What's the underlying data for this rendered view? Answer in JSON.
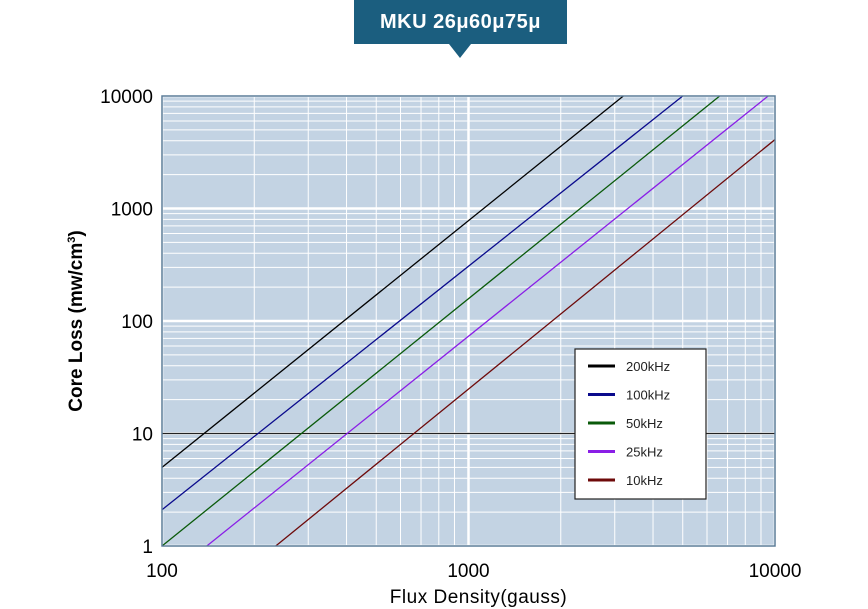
{
  "banner": {
    "title": "MKU 26μ60μ75μ"
  },
  "chart_data": {
    "type": "line",
    "title": "MKU 26μ60μ75μ",
    "xlabel": "Flux Density(gauss)",
    "ylabel_main": "Core Loss (mw/cm",
    "ylabel_sup": "3",
    "ylabel_close": ")",
    "xscale": "log",
    "yscale": "log",
    "xlim": [
      100,
      10000
    ],
    "ylim": [
      1,
      10000
    ],
    "xticks": [
      {
        "value": 100,
        "label": "100"
      },
      {
        "value": 1000,
        "label": "1000"
      },
      {
        "value": 10000,
        "label": "10000"
      }
    ],
    "yticks": [
      {
        "value": 1,
        "label": "1"
      },
      {
        "value": 10,
        "label": "10"
      },
      {
        "value": 100,
        "label": "100"
      },
      {
        "value": 1000,
        "label": "1000"
      },
      {
        "value": 10000,
        "label": "10000"
      }
    ],
    "grid": true,
    "reference_line_y": 10,
    "legend_position": "lower-right",
    "series": [
      {
        "name": "200kHz",
        "color": "#000000",
        "x": [
          100,
          3200
        ],
        "y": [
          5,
          10000
        ]
      },
      {
        "name": "100kHz",
        "color": "#0a0a8c",
        "x": [
          100,
          5000
        ],
        "y": [
          2.1,
          10000
        ]
      },
      {
        "name": "50kHz",
        "color": "#0a5a0a",
        "x": [
          100,
          6600
        ],
        "y": [
          1,
          10000
        ]
      },
      {
        "name": "25kHz",
        "color": "#8a1ee6",
        "x": [
          140,
          9500
        ],
        "y": [
          1,
          10000
        ]
      },
      {
        "name": "10kHz",
        "color": "#6e0a0a",
        "x": [
          235,
          10000
        ],
        "y": [
          1,
          4100
        ]
      }
    ]
  }
}
